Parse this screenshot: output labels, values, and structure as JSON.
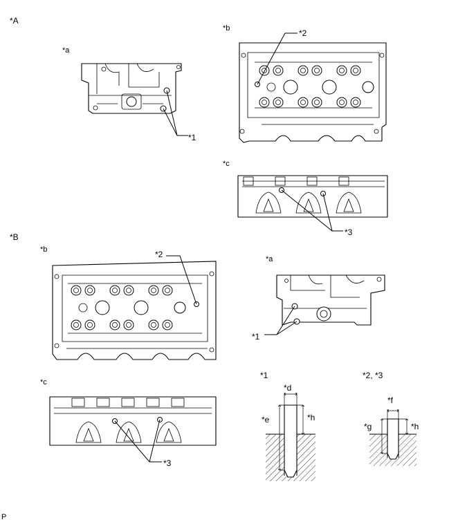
{
  "sections": {
    "A": {
      "label": "*A",
      "views": {
        "a": "*a",
        "b": "*b",
        "c": "*c"
      }
    },
    "B": {
      "label": "*B",
      "views": {
        "b": "*b",
        "c": "*c",
        "a": "*a"
      }
    }
  },
  "callouts": {
    "one": "*1",
    "two": "*2",
    "three": "*3"
  },
  "detail": {
    "pin1_title": "*1",
    "pin23_title": "*2, *3",
    "d": "*d",
    "e": "*e",
    "f": "*f",
    "g": "*g",
    "h": "*h"
  },
  "corner_mark": "P"
}
